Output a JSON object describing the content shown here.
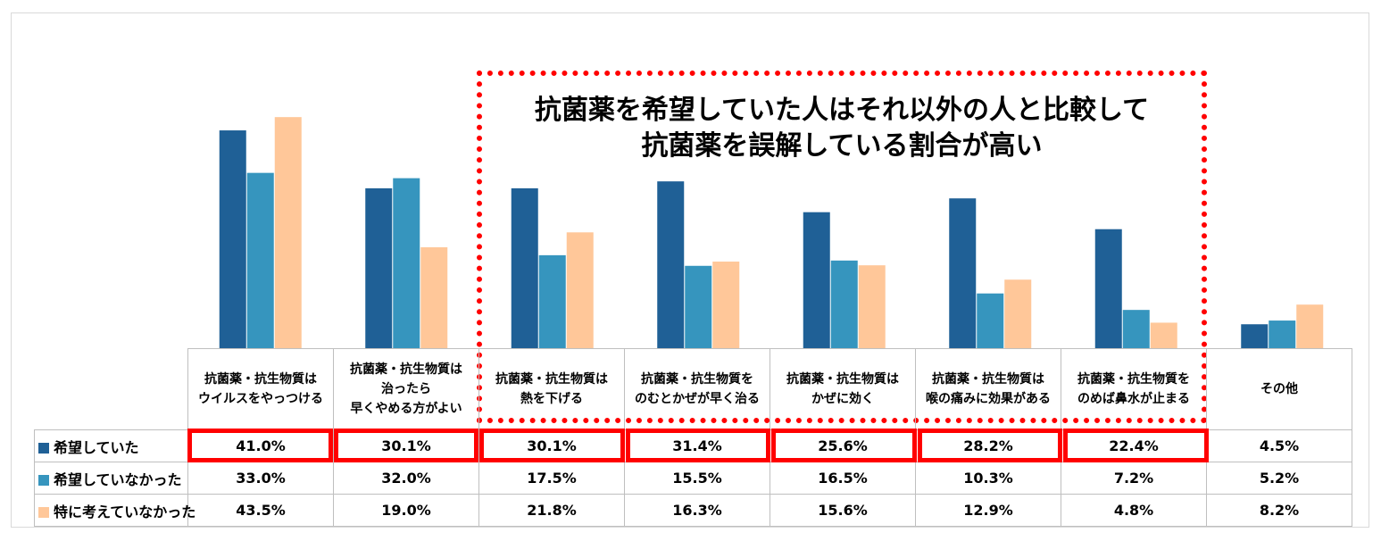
{
  "chart_data": {
    "type": "bar",
    "categories": [
      "抗菌薬・抗生物質は\nウイルスをやっつける",
      "抗菌薬・抗生物質は\n治ったら\n早くやめる方がよい",
      "抗菌薬・抗生物質は\n熱を下げる",
      "抗菌薬・抗生物質を\nのむとかぜが早く治る",
      "抗菌薬・抗生物質は\nかぜに効く",
      "抗菌薬・抗生物質は\n喉の痛みに効果がある",
      "抗菌薬・抗生物質を\nのめば鼻水が止まる",
      "その他"
    ],
    "series": [
      {
        "name": "希望していた",
        "color": "#1f6096",
        "values": [
          41.0,
          30.1,
          30.1,
          31.4,
          25.6,
          28.2,
          22.4,
          4.5
        ],
        "labels": [
          "41.0%",
          "30.1%",
          "30.1%",
          "31.4%",
          "25.6%",
          "28.2%",
          "22.4%",
          "4.5%"
        ]
      },
      {
        "name": "希望していなかった",
        "color": "#3695be",
        "values": [
          33.0,
          32.0,
          17.5,
          15.5,
          16.5,
          10.3,
          7.2,
          5.2
        ],
        "labels": [
          "33.0%",
          "32.0%",
          "17.5%",
          "15.5%",
          "16.5%",
          "10.3%",
          "7.2%",
          "5.2%"
        ]
      },
      {
        "name": "特に考えていなかった",
        "color": "#ffc799",
        "values": [
          43.5,
          19.0,
          21.8,
          16.3,
          15.6,
          12.9,
          4.8,
          8.2
        ],
        "labels": [
          "43.5%",
          "19.0%",
          "21.8%",
          "16.3%",
          "15.6%",
          "12.9%",
          "4.8%",
          "8.2%"
        ]
      }
    ],
    "highlight_row": "希望していた",
    "highlight_color": "#ff0000",
    "grid": false
  },
  "callout": {
    "lines": [
      "抗菌薬を希望していた人はそれ以外の人と比較して",
      "抗菌薬を誤解している割合が高い"
    ]
  }
}
